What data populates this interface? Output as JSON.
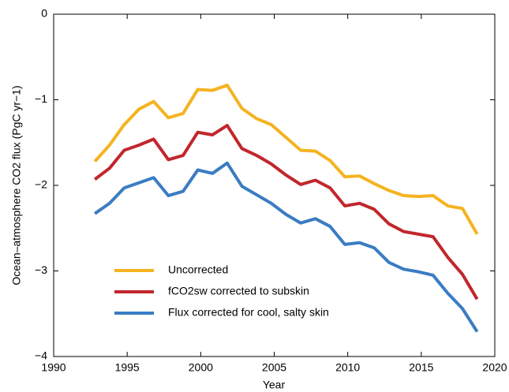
{
  "chart_data": {
    "type": "line",
    "x_label": "Year",
    "y_label": "Ocean–atmosphere CO2 flux (PgC yr−1)",
    "x": [
      1992.8,
      1993.8,
      1994.8,
      1995.8,
      1996.8,
      1997.8,
      1998.8,
      1999.8,
      2000.8,
      2001.8,
      2002.8,
      2003.8,
      2004.8,
      2005.8,
      2006.8,
      2007.8,
      2008.8,
      2009.8,
      2010.8,
      2011.8,
      2012.8,
      2013.8,
      2014.8,
      2015.8,
      2016.8,
      2017.8,
      2018.8
    ],
    "series": [
      {
        "name": "Uncorrected",
        "color": "#f5b320",
        "values": [
          -1.72,
          -1.53,
          -1.29,
          -1.11,
          -1.02,
          -1.21,
          -1.16,
          -0.88,
          -0.89,
          -0.83,
          -1.1,
          -1.22,
          -1.29,
          -1.44,
          -1.59,
          -1.6,
          -1.71,
          -1.9,
          -1.89,
          -1.98,
          -2.06,
          -2.12,
          -2.13,
          -2.12,
          -2.24,
          -2.27,
          -2.57
        ]
      },
      {
        "name": "fCO2sw corrected to subskin",
        "color": "#c1272d",
        "values": [
          -1.93,
          -1.8,
          -1.59,
          -1.53,
          -1.46,
          -1.7,
          -1.65,
          -1.38,
          -1.41,
          -1.3,
          -1.57,
          -1.65,
          -1.75,
          -1.88,
          -1.99,
          -1.94,
          -2.03,
          -2.24,
          -2.21,
          -2.28,
          -2.45,
          -2.54,
          -2.57,
          -2.6,
          -2.84,
          -3.04,
          -3.33
        ]
      },
      {
        "name": "Flux corrected for cool, salty skin",
        "color": "#3a7cc3",
        "values": [
          -2.33,
          -2.21,
          -2.03,
          -1.97,
          -1.91,
          -2.12,
          -2.07,
          -1.82,
          -1.86,
          -1.74,
          -2.01,
          -2.11,
          -2.21,
          -2.34,
          -2.44,
          -2.39,
          -2.48,
          -2.69,
          -2.67,
          -2.73,
          -2.9,
          -2.98,
          -3.01,
          -3.05,
          -3.26,
          -3.44,
          -3.71
        ]
      }
    ],
    "xlim": [
      1990,
      2020
    ],
    "xticks": [
      1990,
      1995,
      2000,
      2005,
      2010,
      2015,
      2020
    ],
    "ylim": [
      -4,
      0
    ],
    "yticks": [
      {
        "value": -4,
        "label": "−4"
      },
      {
        "value": -3,
        "label": "−3"
      },
      {
        "value": -2,
        "label": "−2"
      },
      {
        "value": -1,
        "label": "−1"
      },
      0
    ],
    "legend": "lower left",
    "grid": false
  }
}
